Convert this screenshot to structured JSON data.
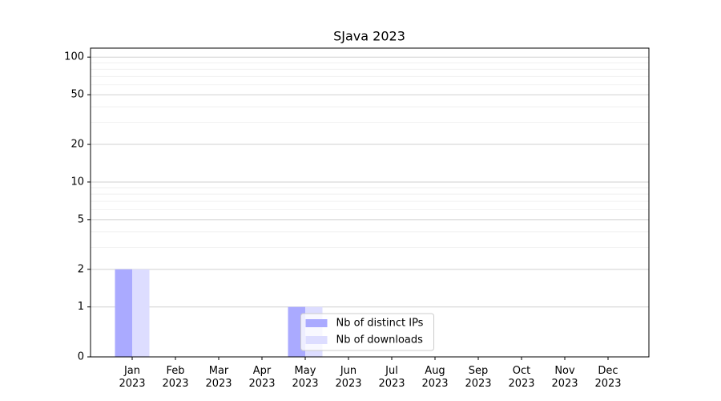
{
  "chart_data": {
    "type": "bar",
    "title": "SJava 2023",
    "categories": [
      "Jan\n2023",
      "Feb\n2023",
      "Mar\n2023",
      "Apr\n2023",
      "May\n2023",
      "Jun\n2023",
      "Jul\n2023",
      "Aug\n2023",
      "Sep\n2023",
      "Oct\n2023",
      "Nov\n2023",
      "Dec\n2023"
    ],
    "series": [
      {
        "name": "Nb of distinct IPs",
        "color": "#aaaaff",
        "values": [
          2,
          0,
          0,
          0,
          1,
          0,
          0,
          0,
          0,
          0,
          0,
          0
        ]
      },
      {
        "name": "Nb of downloads",
        "color": "#ddddff",
        "values": [
          2,
          0,
          0,
          0,
          1,
          0,
          0,
          0,
          0,
          0,
          0,
          0
        ]
      }
    ],
    "yscale": "symlog",
    "linthresh": 1,
    "linscale": 0.4,
    "ylim": [
      0,
      118
    ],
    "yticks": [
      0,
      1,
      2,
      5,
      10,
      20,
      50,
      100
    ],
    "minor_yticks": [
      3,
      4,
      6,
      7,
      8,
      9,
      30,
      40,
      60,
      70,
      80,
      90
    ],
    "grid": true,
    "legend": "lower center"
  }
}
